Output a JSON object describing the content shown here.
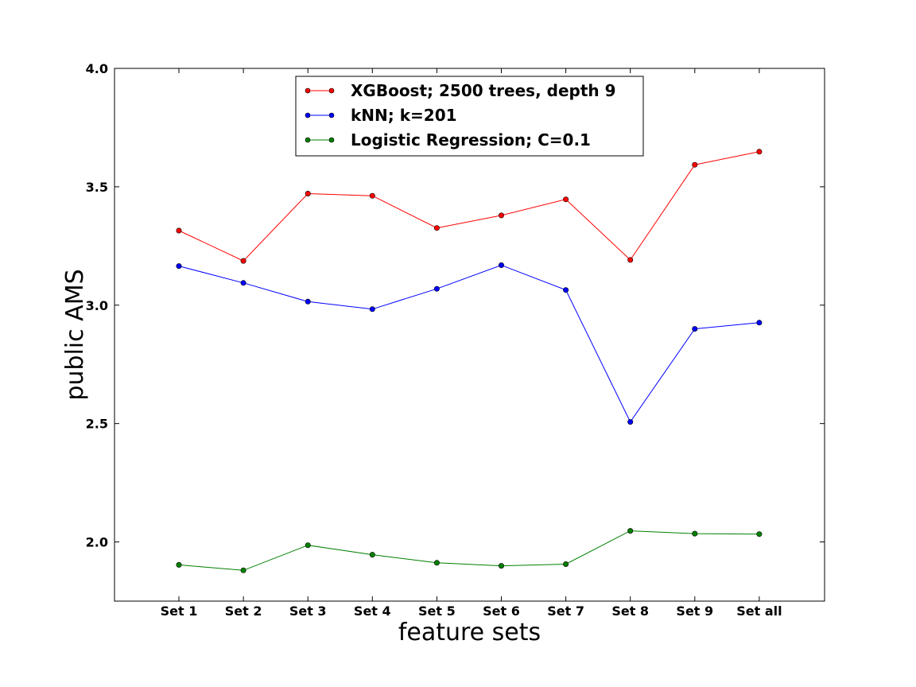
{
  "chart_data": {
    "type": "line",
    "title": "",
    "xlabel": "feature sets",
    "ylabel": "public AMS",
    "categories": [
      "Set 1",
      "Set 2",
      "Set 3",
      "Set 4",
      "Set 5",
      "Set 6",
      "Set 7",
      "Set 8",
      "Set 9",
      "Set all"
    ],
    "ylim": [
      1.75,
      4.0
    ],
    "yticks": [
      "2.0",
      "2.5",
      "3.0",
      "3.5",
      "4.0"
    ],
    "grid": false,
    "legend_position": "upper center",
    "series": [
      {
        "name": "XGBoost; 2500 trees, depth 9",
        "color": "#ff0000",
        "values": [
          3.315,
          3.187,
          3.471,
          3.462,
          3.326,
          3.379,
          3.447,
          3.191,
          3.593,
          3.648
        ]
      },
      {
        "name": "kNN; k=201",
        "color": "#0000ff",
        "values": [
          3.165,
          3.094,
          3.015,
          2.983,
          3.069,
          3.169,
          3.064,
          2.507,
          2.9,
          2.926
        ]
      },
      {
        "name": "Logistic Regression; C=0.1",
        "color": "#008000",
        "values": [
          1.903,
          1.88,
          1.986,
          1.946,
          1.912,
          1.899,
          1.906,
          2.047,
          2.035,
          2.033
        ]
      }
    ]
  }
}
